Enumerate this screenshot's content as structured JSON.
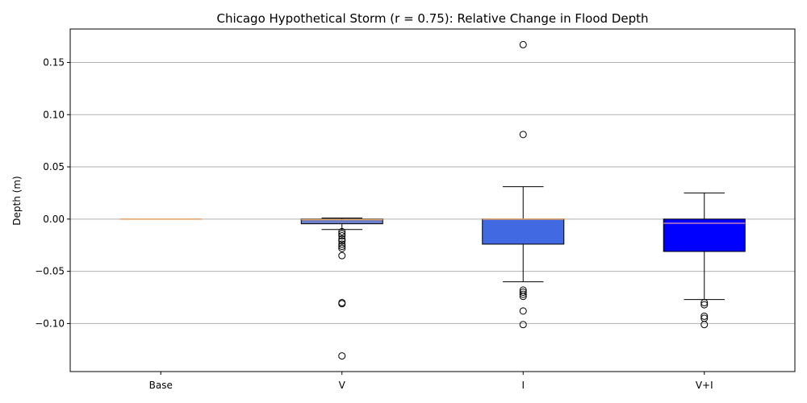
{
  "chart_data": {
    "type": "box",
    "title": "Chicago Hypothetical Storm (r = 0.75): Relative Change in Flood Depth",
    "xlabel": "",
    "ylabel": "Depth (m)",
    "ylim": [
      -0.146,
      0.182
    ],
    "yticks": [
      -0.1,
      -0.05,
      0.0,
      0.05,
      0.1,
      0.15
    ],
    "ytick_labels": [
      "−0.10",
      "−0.05",
      "0.00",
      "0.05",
      "0.10",
      "0.15"
    ],
    "grid": "horizontal",
    "categories": [
      "Base",
      "V",
      "I",
      "V+I"
    ],
    "boxes": [
      {
        "label": "Base",
        "color": "#c0c0c0",
        "median_color": "#e8a060",
        "whisker_low": 0.0,
        "q1": 0.0,
        "median": 0.0,
        "q3": 0.0,
        "whisker_high": 0.0,
        "outliers": []
      },
      {
        "label": "V",
        "color": "#6b7fc8",
        "median_color": "#e8a060",
        "whisker_low": -0.01,
        "q1": -0.0045,
        "median": -0.0005,
        "q3": 0.0,
        "whisker_high": 0.001,
        "outliers": [
          -0.012,
          -0.014,
          -0.016,
          -0.019,
          -0.021,
          -0.024,
          -0.026,
          -0.028,
          -0.035,
          -0.08,
          -0.081,
          -0.131
        ]
      },
      {
        "label": "I",
        "color": "#4169e1",
        "median_color": "#e8a060",
        "whisker_low": -0.06,
        "q1": -0.024,
        "median": 0.0,
        "q3": 0.0,
        "whisker_high": 0.031,
        "outliers": [
          -0.068,
          -0.07,
          -0.072,
          -0.074,
          -0.088,
          -0.101,
          0.081,
          0.167
        ]
      },
      {
        "label": "V+I",
        "color": "#0000ff",
        "median_color": "#c080c0",
        "whisker_low": -0.077,
        "q1": -0.031,
        "median": -0.004,
        "q3": 0.0,
        "whisker_high": 0.025,
        "outliers": [
          -0.08,
          -0.082,
          -0.093,
          -0.095,
          -0.101
        ]
      }
    ]
  }
}
